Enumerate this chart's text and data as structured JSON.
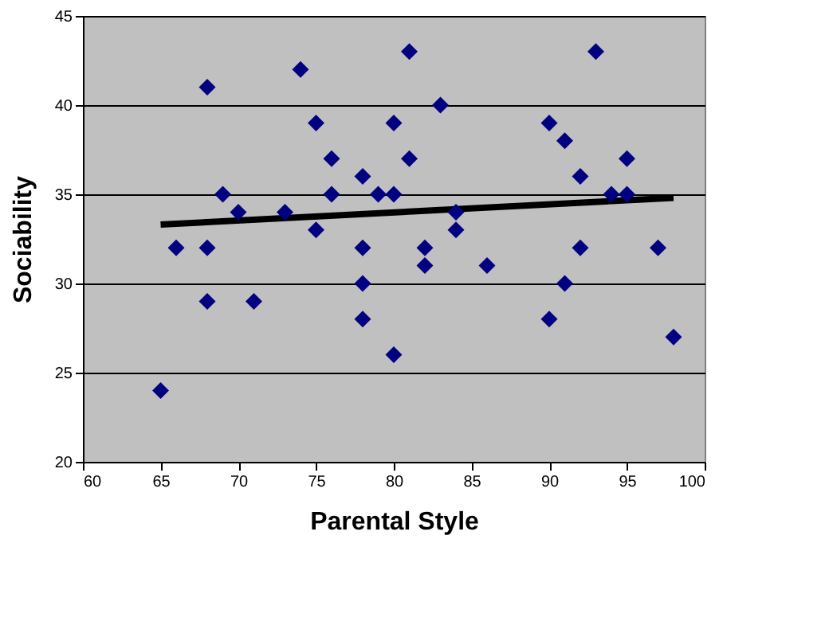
{
  "chart_data": {
    "type": "scatter",
    "xlabel": "Parental Style",
    "ylabel": "Sociability",
    "xlim": [
      60,
      100
    ],
    "xticks": [
      60,
      65,
      70,
      75,
      80,
      85,
      90,
      95,
      100
    ],
    "ylim": [
      20,
      45
    ],
    "yticks": [
      20,
      25,
      30,
      35,
      40,
      45
    ],
    "grid": "y",
    "legend": false,
    "series": [
      {
        "color": "#000080",
        "marker": "diamond",
        "x": [
          65,
          66,
          68,
          68,
          68,
          69,
          70,
          71,
          73,
          74,
          75,
          75,
          76,
          76,
          78,
          78,
          78,
          78,
          79,
          80,
          80,
          80,
          81,
          81,
          82,
          82,
          83,
          84,
          84,
          86,
          90,
          90,
          91,
          91,
          92,
          92,
          93,
          94,
          95,
          95,
          97,
          98
        ],
        "values": [
          24,
          32,
          41,
          32,
          29,
          35,
          34,
          29,
          34,
          42,
          39,
          33,
          37,
          35,
          36,
          32,
          30,
          28,
          35,
          39,
          35,
          26,
          43,
          37,
          32,
          31,
          40,
          34,
          33,
          31,
          39,
          28,
          38,
          30,
          36,
          32,
          43,
          35,
          37,
          35,
          32,
          27
        ]
      },
      {
        "type": "line",
        "color": "#000000",
        "line_style": "solid",
        "x": [
          65,
          98
        ],
        "values": [
          33.3,
          34.8
        ]
      }
    ]
  }
}
